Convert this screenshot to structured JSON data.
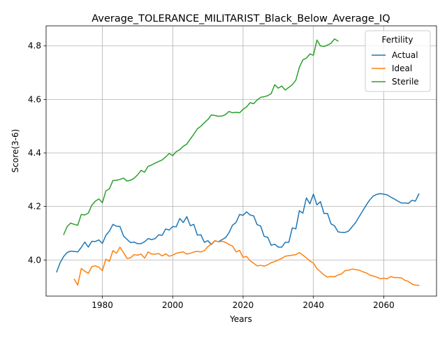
{
  "chart_data": {
    "type": "line",
    "title": "Average_TOLERANCE_MILITARIST_Black_Below_Average_IQ",
    "xlabel": "Years",
    "ylabel": "Score(3-6)",
    "xlim": [
      1964,
      2075
    ],
    "ylim": [
      3.865,
      4.875
    ],
    "xticks": [
      1980,
      2000,
      2020,
      2040,
      2060
    ],
    "yticks": [
      4.0,
      4.2,
      4.4,
      4.6,
      4.8
    ],
    "grid": true,
    "legend": {
      "title": "Fertility",
      "position": "top-right"
    },
    "series": [
      {
        "name": "Actual",
        "color": "#1f77b4",
        "x": [
          1967,
          1968,
          1969,
          1970,
          1971,
          1972,
          1973,
          1974,
          1975,
          1976,
          1977,
          1978,
          1979,
          1980,
          1981,
          1982,
          1983,
          1984,
          1985,
          1986,
          1987,
          1988,
          1989,
          1990,
          1991,
          1992,
          1993,
          1994,
          1995,
          1996,
          1997,
          1998,
          1999,
          2000,
          2001,
          2002,
          2003,
          2004,
          2005,
          2006,
          2007,
          2008,
          2009,
          2010,
          2011,
          2012,
          2013,
          2014,
          2015,
          2016,
          2017,
          2018,
          2019,
          2020,
          2021,
          2022,
          2023,
          2024,
          2025,
          2026,
          2027,
          2028,
          2029,
          2030,
          2031,
          2032,
          2033,
          2034,
          2035,
          2036,
          2037,
          2038,
          2039,
          2040,
          2041,
          2042,
          2043,
          2044,
          2045,
          2046,
          2047,
          2048,
          2049,
          2050,
          2051,
          2052,
          2053,
          2054,
          2055,
          2056,
          2057,
          2058,
          2059,
          2060,
          2061,
          2062,
          2063,
          2064,
          2065,
          2066,
          2067,
          2068,
          2069,
          2070
        ],
        "y": [
          3.955,
          3.99,
          4.013,
          4.028,
          4.033,
          4.032,
          4.03,
          4.047,
          4.067,
          4.048,
          4.07,
          4.069,
          4.075,
          4.062,
          4.092,
          4.108,
          4.133,
          4.126,
          4.125,
          4.09,
          4.077,
          4.065,
          4.067,
          4.061,
          4.061,
          4.068,
          4.08,
          4.076,
          4.08,
          4.094,
          4.092,
          4.116,
          4.112,
          4.125,
          4.124,
          4.155,
          4.14,
          4.162,
          4.128,
          4.133,
          4.093,
          4.094,
          4.066,
          4.072,
          4.058,
          4.072,
          4.068,
          4.076,
          4.083,
          4.102,
          4.13,
          4.14,
          4.17,
          4.167,
          4.18,
          4.168,
          4.165,
          4.132,
          4.127,
          4.088,
          4.085,
          4.055,
          4.059,
          4.048,
          4.048,
          4.066,
          4.066,
          4.12,
          4.116,
          4.184,
          4.175,
          4.232,
          4.21,
          4.246,
          4.206,
          4.218,
          4.174,
          4.174,
          4.135,
          4.128,
          4.105,
          4.103,
          4.103,
          4.108,
          4.124,
          4.14,
          4.162,
          4.183,
          4.205,
          4.224,
          4.239,
          4.245,
          4.248,
          4.246,
          4.243,
          4.235,
          4.228,
          4.22,
          4.213,
          4.213,
          4.211,
          4.223,
          4.22,
          4.247
        ]
      },
      {
        "name": "Ideal",
        "color": "#ff7f0e",
        "x": [
          1972,
          1973,
          1974,
          1975,
          1976,
          1977,
          1978,
          1979,
          1980,
          1981,
          1982,
          1983,
          1984,
          1985,
          1986,
          1987,
          1988,
          1989,
          1990,
          1991,
          1992,
          1993,
          1994,
          1995,
          1996,
          1997,
          1998,
          1999,
          2000,
          2001,
          2002,
          2003,
          2004,
          2005,
          2006,
          2007,
          2008,
          2009,
          2010,
          2011,
          2012,
          2013,
          2014,
          2015,
          2016,
          2017,
          2018,
          2019,
          2020,
          2021,
          2022,
          2023,
          2024,
          2025,
          2026,
          2027,
          2028,
          2029,
          2030,
          2031,
          2032,
          2033,
          2034,
          2035,
          2036,
          2037,
          2038,
          2039,
          2040,
          2041,
          2042,
          2043,
          2044,
          2045,
          2046,
          2047,
          2048,
          2049,
          2050,
          2051,
          2052,
          2053,
          2054,
          2055,
          2056,
          2057,
          2058,
          2059,
          2060,
          2061,
          2062,
          2063,
          2064,
          2065,
          2066,
          2067,
          2068,
          2069,
          2070
        ],
        "y": [
          3.928,
          3.906,
          3.968,
          3.958,
          3.95,
          3.975,
          3.978,
          3.973,
          3.96,
          4.003,
          3.995,
          4.035,
          4.025,
          4.048,
          4.028,
          4.006,
          4.008,
          4.02,
          4.018,
          4.022,
          4.007,
          4.03,
          4.022,
          4.022,
          4.024,
          4.015,
          4.023,
          4.014,
          4.018,
          4.025,
          4.028,
          4.03,
          4.022,
          4.025,
          4.03,
          4.032,
          4.03,
          4.035,
          4.05,
          4.06,
          4.072,
          4.068,
          4.07,
          4.066,
          4.058,
          4.052,
          4.03,
          4.036,
          4.01,
          4.013,
          3.997,
          3.988,
          3.978,
          3.98,
          3.977,
          3.982,
          3.99,
          3.994,
          4.0,
          4.006,
          4.014,
          4.016,
          4.018,
          4.02,
          4.028,
          4.018,
          4.008,
          3.996,
          3.988,
          3.968,
          3.956,
          3.944,
          3.936,
          3.938,
          3.937,
          3.944,
          3.948,
          3.96,
          3.962,
          3.966,
          3.964,
          3.962,
          3.956,
          3.952,
          3.944,
          3.94,
          3.936,
          3.93,
          3.932,
          3.93,
          3.938,
          3.934,
          3.934,
          3.933,
          3.924,
          3.92,
          3.91,
          3.906,
          3.905
        ]
      },
      {
        "name": "Sterile",
        "color": "#2ca02c",
        "x": [
          1969,
          1970,
          1971,
          1972,
          1973,
          1974,
          1975,
          1976,
          1977,
          1978,
          1979,
          1980,
          1981,
          1982,
          1983,
          1984,
          1985,
          1986,
          1987,
          1988,
          1989,
          1990,
          1991,
          1992,
          1993,
          1994,
          1995,
          1996,
          1997,
          1998,
          1999,
          2000,
          2001,
          2002,
          2003,
          2004,
          2005,
          2006,
          2007,
          2008,
          2009,
          2010,
          2011,
          2012,
          2013,
          2014,
          2015,
          2016,
          2017,
          2018,
          2019,
          2020,
          2021,
          2022,
          2023,
          2024,
          2025,
          2026,
          2027,
          2028,
          2029,
          2030,
          2031,
          2032,
          2033,
          2034,
          2035,
          2036,
          2037,
          2038,
          2039,
          2040,
          2041,
          2042,
          2043,
          2044,
          2045,
          2046,
          2047
        ],
        "y": [
          4.095,
          4.125,
          4.138,
          4.133,
          4.13,
          4.17,
          4.168,
          4.175,
          4.205,
          4.22,
          4.228,
          4.214,
          4.258,
          4.266,
          4.297,
          4.298,
          4.301,
          4.306,
          4.295,
          4.298,
          4.305,
          4.318,
          4.335,
          4.328,
          4.35,
          4.355,
          4.362,
          4.368,
          4.374,
          4.385,
          4.398,
          4.39,
          4.405,
          4.412,
          4.425,
          4.433,
          4.452,
          4.47,
          4.49,
          4.5,
          4.513,
          4.525,
          4.542,
          4.54,
          4.537,
          4.538,
          4.543,
          4.555,
          4.55,
          4.552,
          4.55,
          4.563,
          4.572,
          4.588,
          4.584,
          4.598,
          4.608,
          4.61,
          4.614,
          4.622,
          4.655,
          4.642,
          4.65,
          4.635,
          4.645,
          4.655,
          4.672,
          4.72,
          4.748,
          4.754,
          4.77,
          4.765,
          4.822,
          4.8,
          4.798,
          4.803,
          4.81,
          4.826,
          4.818
        ]
      }
    ]
  }
}
